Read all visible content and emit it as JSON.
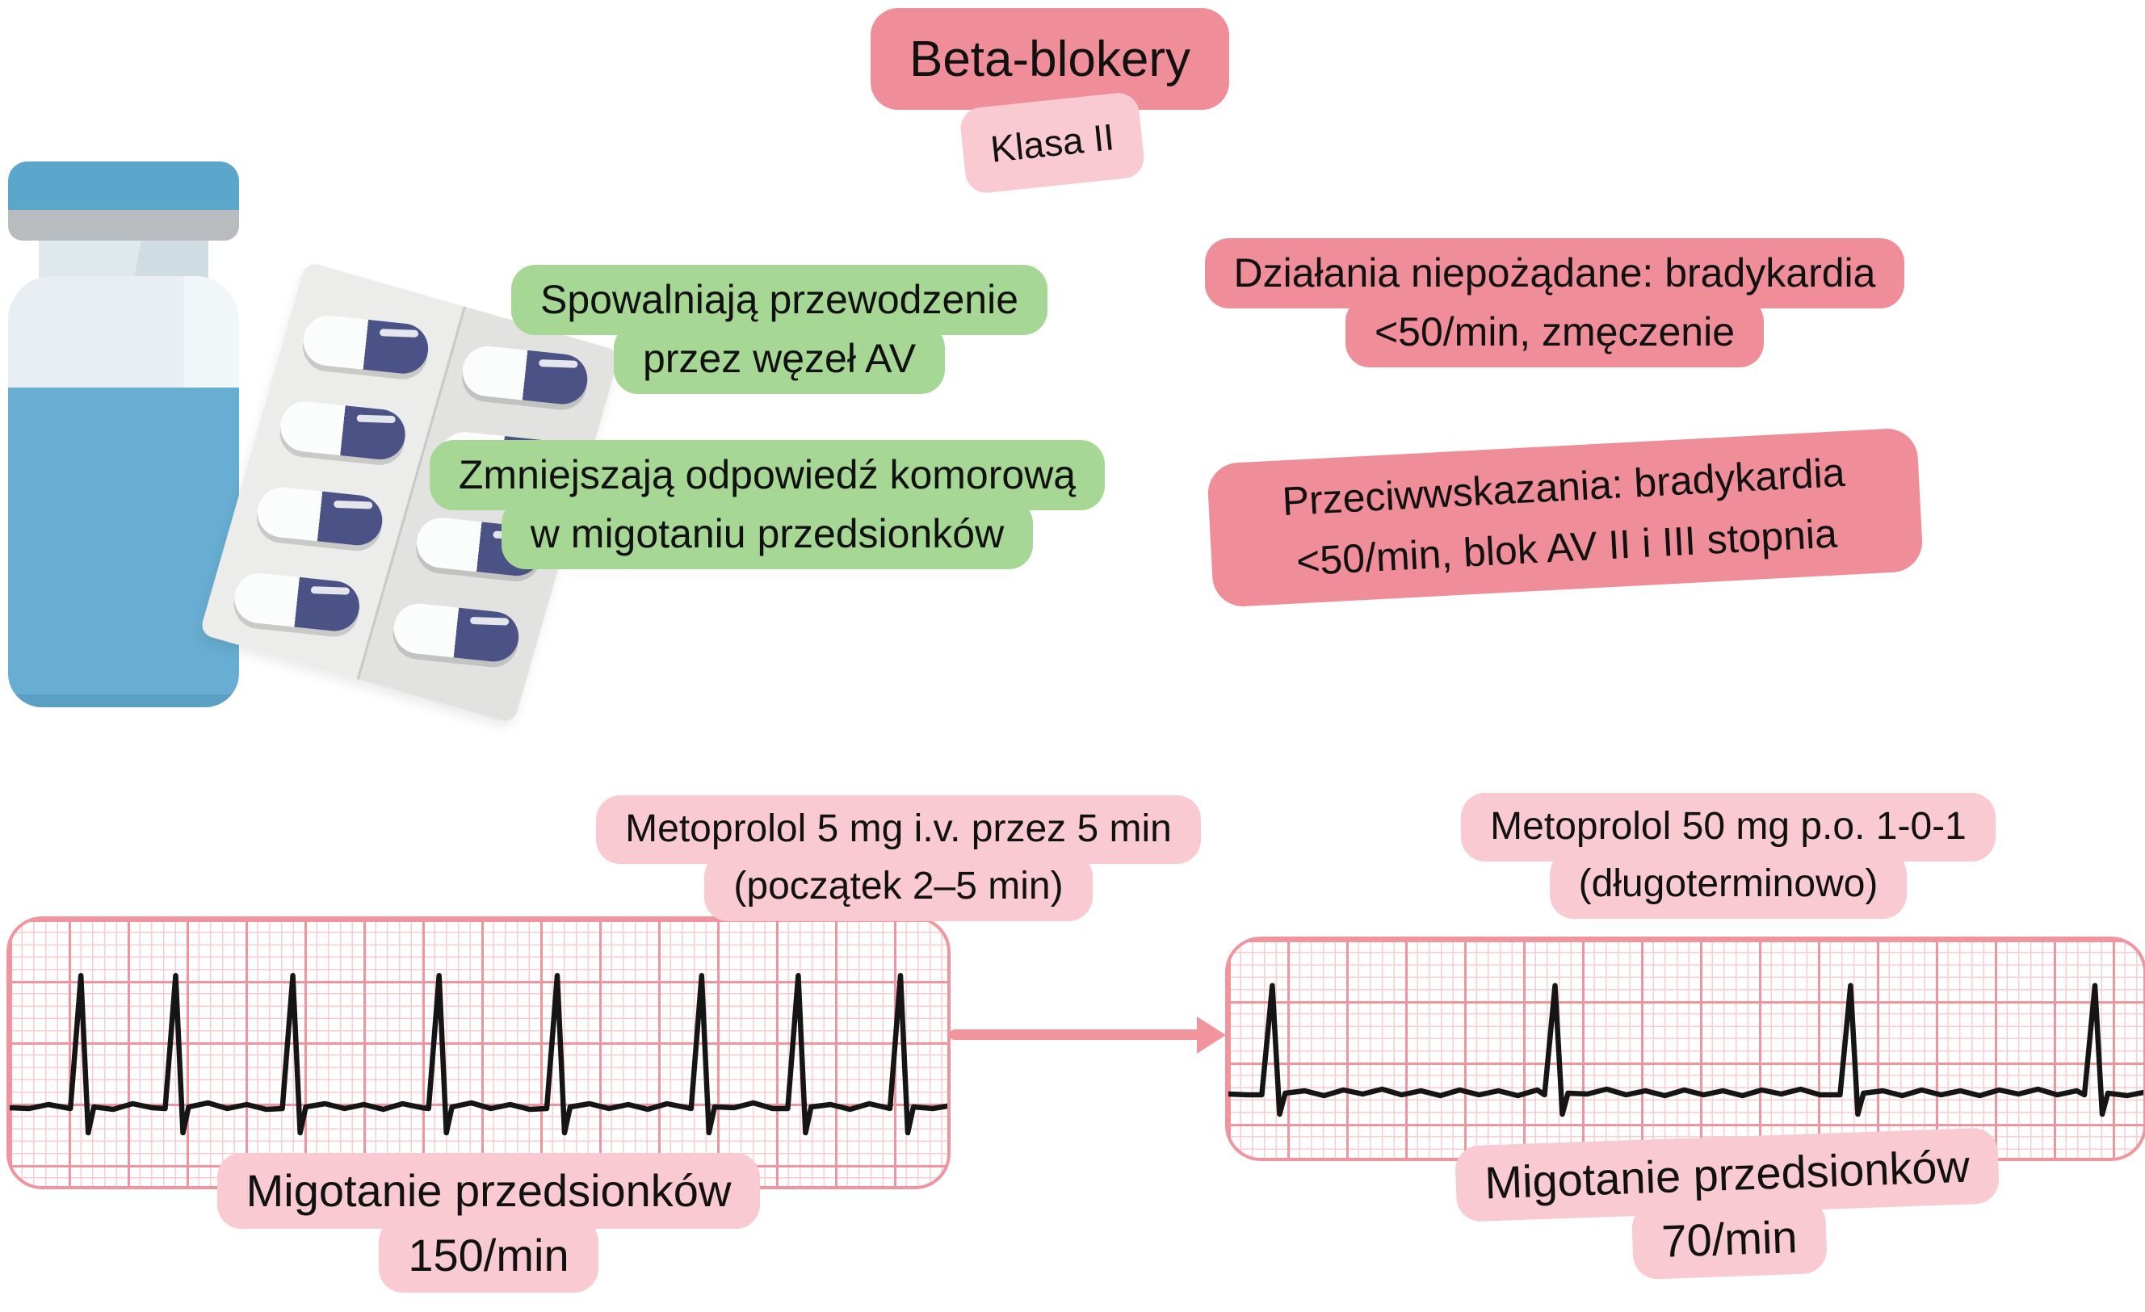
{
  "title": {
    "text": "Beta-blokery",
    "class_label": "Klasa II"
  },
  "mechanism_notes": [
    {
      "lines": [
        "Spowalniają przewodzenie",
        "przez węzeł AV"
      ]
    },
    {
      "lines": [
        "Zmniejszają odpowiedź komorową",
        "w migotaniu przedsionków"
      ]
    }
  ],
  "warning_notes": [
    {
      "lines": [
        "Działania niepożądane: bradykardia",
        "<50/min, zmęczenie"
      ]
    },
    {
      "lines": [
        "Przeciwwskazania: bradykardia",
        "<50/min, blok AV II i III stopnia"
      ]
    }
  ],
  "ecg_panels": [
    {
      "dose_lines": [
        "Metoprolol 5 mg i.v. przez 5 min",
        "(początek 2–5 min)"
      ],
      "rhythm_lines": [
        "Migotanie przedsionków",
        "150/min"
      ],
      "rate_per_min": 150,
      "beats_pct": [
        7.6,
        17.7,
        30.2,
        45.8,
        58.4,
        73.8,
        84.1,
        95.0
      ]
    },
    {
      "dose_lines": [
        "Metoprolol 50 mg p.o. 1-0-1",
        "(długoterminowo)"
      ],
      "rhythm_lines": [
        "Migotanie przedsionków",
        "70/min"
      ],
      "rate_per_min": 70,
      "beats_pct": [
        4.8,
        35.7,
        68.0,
        94.7
      ]
    }
  ],
  "icons": {
    "vial": "medicine-vial",
    "blister": "pill-blister-pack",
    "capsule": "two-tone-capsule",
    "arrow": "right-arrow"
  },
  "colors": {
    "badge_strong": "#ef8e98",
    "badge_soft": "#f9cad1",
    "note_green": "#a7d795",
    "ecg_grid_bold": "#f0959e",
    "ecg_grid_fine": "#f8ccd0",
    "ecg_trace": "#151515",
    "arrow": "#f2949e",
    "vial_cap": "#5ba7cc",
    "vial_band": "#b9bcbe",
    "vial_glass": "#e8eef1",
    "vial_liquid": "#68aed2",
    "capsule_dark": "#4b5286",
    "blister_light": "#ececea",
    "blister_dark": "#e2e2e0",
    "text": "#111111",
    "background": "#ffffff"
  }
}
